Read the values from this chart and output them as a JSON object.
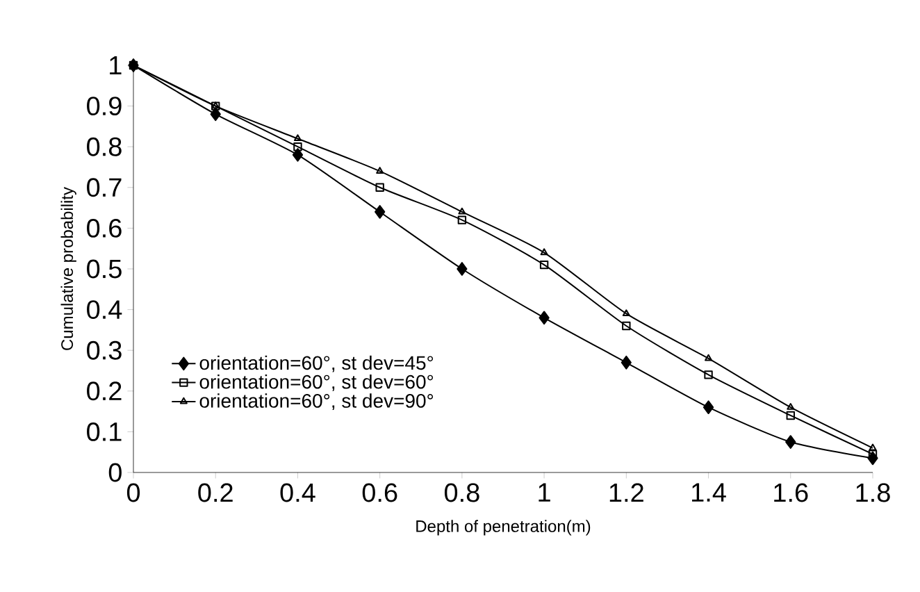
{
  "chart_data": {
    "type": "line",
    "xlabel": "Depth of penetration(m)",
    "ylabel": "Cumulative probability",
    "x": [
      0,
      0.2,
      0.4,
      0.6,
      0.8,
      1,
      1.2,
      1.4,
      1.6,
      1.8
    ],
    "series": [
      {
        "name": "orientation=60°, st dev=45°",
        "color": "#000000",
        "marker": "diamond",
        "values": [
          1,
          0.88,
          0.78,
          0.64,
          0.5,
          0.38,
          0.27,
          0.16,
          0.075,
          0.035
        ]
      },
      {
        "name": "orientation=60°, st dev=60°",
        "color": "#000000",
        "marker": "square",
        "values": [
          1,
          0.9,
          0.8,
          0.7,
          0.62,
          0.51,
          0.36,
          0.24,
          0.14,
          0.045
        ]
      },
      {
        "name": "orientation=60°, st dev=90°",
        "color": "#000000",
        "marker": "triangle",
        "values": [
          1,
          0.9,
          0.82,
          0.74,
          0.64,
          0.54,
          0.39,
          0.28,
          0.16,
          0.06
        ]
      }
    ],
    "xlim": [
      0,
      1.8
    ],
    "ylim": [
      0,
      1
    ],
    "xticks": [
      0,
      0.2,
      0.4,
      0.6,
      0.8,
      1,
      1.2,
      1.4,
      1.6,
      1.8
    ],
    "yticks": [
      0,
      0.1,
      0.2,
      0.3,
      0.4,
      0.5,
      0.6,
      0.7,
      0.8,
      0.9,
      1
    ],
    "grid": false,
    "legend": "left",
    "line_style": "solid"
  }
}
